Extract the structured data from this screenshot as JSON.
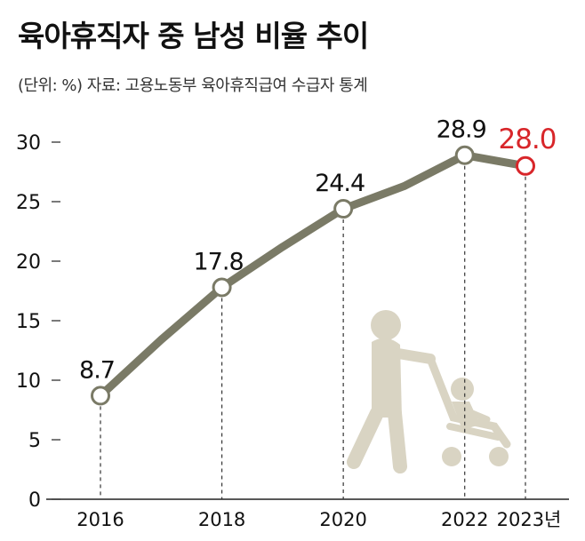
{
  "title": "육아휴직자 중 남성 비율 추이",
  "subtitle": "(단위: %) 자료: 고용노동부 육아휴직급여 수급자 통계",
  "colors": {
    "line": "#7a7a66",
    "highlight": "#d8262a",
    "illustration": "#d9d4c3",
    "text": "#111111"
  },
  "chart_data": {
    "type": "line",
    "title": "육아휴직자 중 남성 비율 추이",
    "ylabel": "(단위: %)",
    "ylim": [
      0,
      30
    ],
    "yticks": [
      "0",
      "5",
      "10",
      "15",
      "20",
      "25",
      "30"
    ],
    "xticks": [
      "2016",
      "2018",
      "2020",
      "2022",
      "2023년"
    ],
    "grid": false,
    "series": [
      {
        "x": [
          2016,
          2017,
          2018,
          2019,
          2020,
          2021,
          2022,
          2023
        ],
        "values": [
          8.7,
          13.4,
          17.8,
          21.2,
          24.4,
          26.3,
          28.9,
          28.0
        ]
      }
    ],
    "labeled_points": [
      {
        "x": 2016,
        "label": "8.7",
        "highlight": false
      },
      {
        "x": 2018,
        "label": "17.8",
        "highlight": false
      },
      {
        "x": 2020,
        "label": "24.4",
        "highlight": false
      },
      {
        "x": 2022,
        "label": "28.9",
        "highlight": false
      },
      {
        "x": 2023,
        "label": "28.0",
        "highlight": true
      }
    ]
  }
}
